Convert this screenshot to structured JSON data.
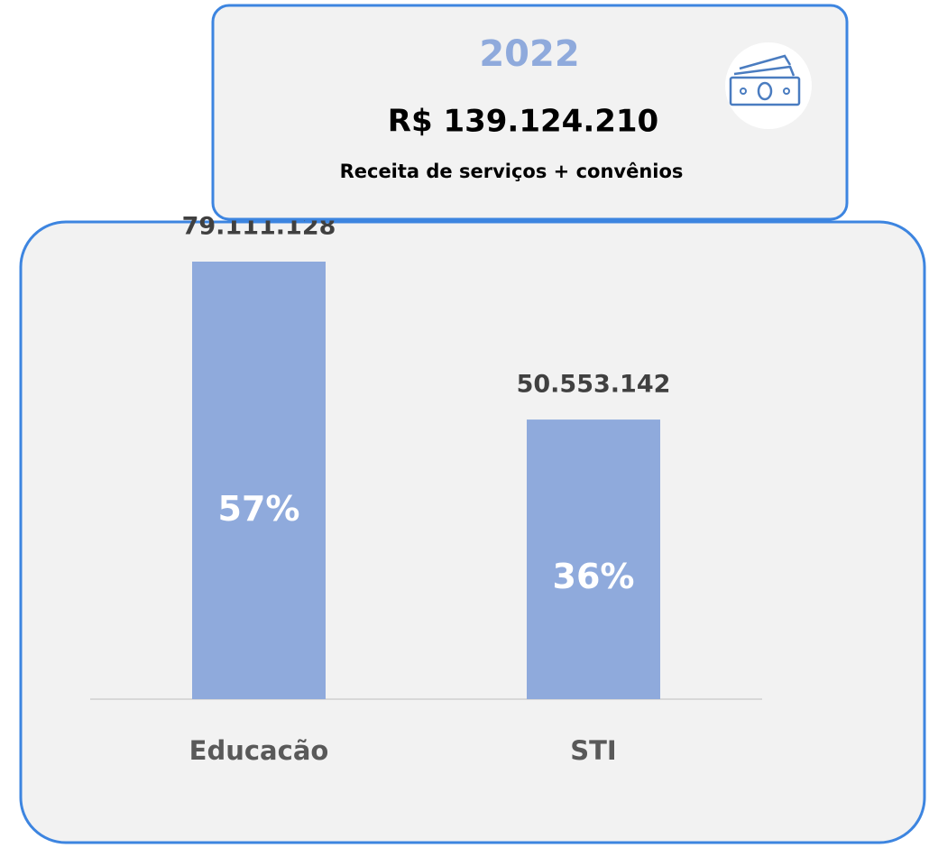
{
  "header": {
    "year": "2022",
    "total": "R$ 139.124.210",
    "label": "Receita de serviços + convênios"
  },
  "chart_data": {
    "type": "bar",
    "categories": [
      "Educacão",
      "STI"
    ],
    "values": [
      79111128,
      50553142
    ],
    "value_labels": [
      "79.111.128",
      "50.553.142"
    ],
    "shares": [
      57,
      36
    ],
    "share_labels": [
      "57%",
      "36%"
    ],
    "color": "#8faadc"
  }
}
